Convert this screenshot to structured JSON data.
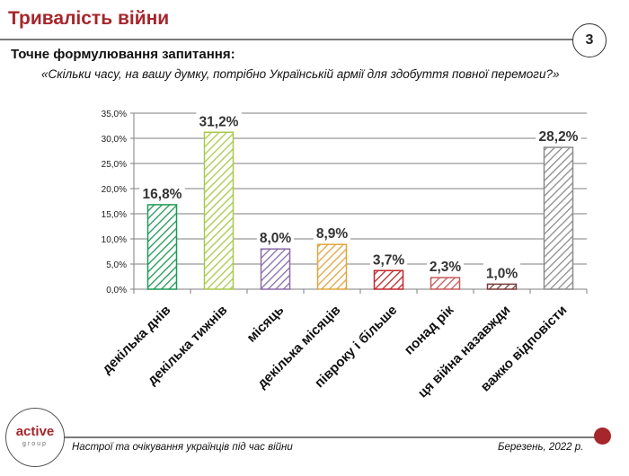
{
  "header": {
    "title": "Тривалість війни",
    "page_number": "3"
  },
  "question": {
    "label": "Точне формулювання запитання:",
    "text": "«Скільки часу, на вашу думку, потрібно Українській армії для здобуття повної перемоги?»"
  },
  "footer": {
    "survey_name": "Настрої та очікування українців під час війни",
    "date": "Березень, 2022 р.",
    "logo_main": "active",
    "logo_sub": "group"
  },
  "colors": {
    "brand": "#a5262b",
    "axis": "#7f7f7f",
    "grid": "#555555"
  },
  "chart_data": {
    "type": "bar",
    "title": "",
    "xlabel": "",
    "ylabel": "",
    "ylim": [
      0,
      35
    ],
    "yticks": [
      "0,0%",
      "5,0%",
      "10,0%",
      "15,0%",
      "20,0%",
      "25,0%",
      "30,0%",
      "35,0%"
    ],
    "categories": [
      "декілька днів",
      "декілька тижнів",
      "місяць",
      "декілька місяців",
      "півроку і більше",
      "понад рік",
      "ця війна назавжди",
      "важко відповісти"
    ],
    "values": [
      16.8,
      31.2,
      8.0,
      8.9,
      3.7,
      2.3,
      1.0,
      28.2
    ],
    "labels": [
      "16,8%",
      "31,2%",
      "8,0%",
      "8,9%",
      "3,7%",
      "2,3%",
      "1,0%",
      "28,2%"
    ],
    "bar_colors": [
      "#1e9a55",
      "#a9c94a",
      "#8a6aa6",
      "#e0a53c",
      "#c0282e",
      "#c65a5a",
      "#7a3a3a",
      "#8c8c8c"
    ],
    "grid": true
  }
}
